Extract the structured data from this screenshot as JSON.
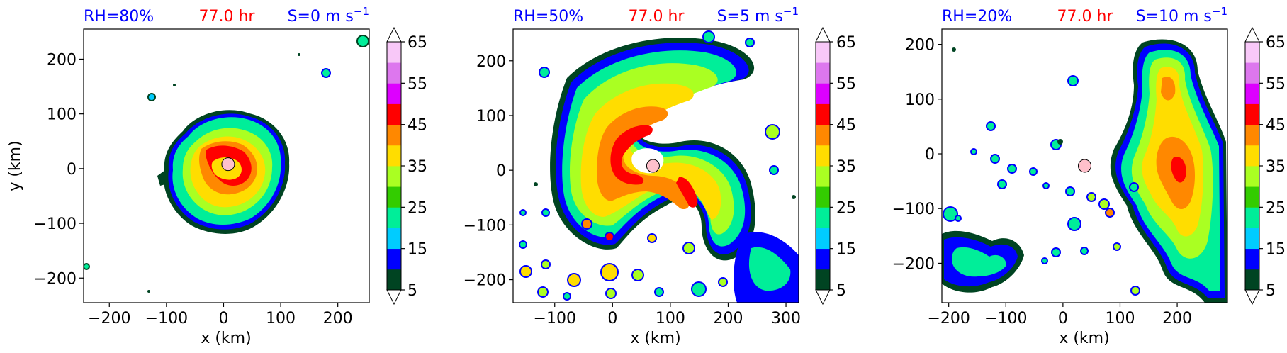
{
  "colors": {
    "title_left": "#0000ff",
    "title_center": "#ff0000",
    "title_right": "#0000ff",
    "eye_marker": "#ffc0cb",
    "colorbar_levels": [
      "#004422",
      "#0000ff",
      "#00ccff",
      "#00ee99",
      "#33cc00",
      "#aaff22",
      "#ffdd00",
      "#ff8800",
      "#ff0000",
      "#dd00ff",
      "#dd77ee",
      "#f8c8f8"
    ]
  },
  "chart_data": [
    {
      "type": "heatmap",
      "title_left": "RH=80%",
      "title_center": "77.0 hr",
      "title_right_base": "S=0 m s",
      "title_right_sup": "−1",
      "xlabel": "x (km)",
      "ylabel": "y (km)",
      "xlim": [
        -245,
        255
      ],
      "ylim": [
        -245,
        255
      ],
      "xticks": [
        -200,
        -100,
        0,
        100,
        200
      ],
      "xtick_labels": [
        "−200",
        "−100",
        "0",
        "100",
        "200"
      ],
      "yticks": [
        -200,
        -100,
        0,
        100,
        200
      ],
      "ytick_labels": [
        "−200",
        "−100",
        "0",
        "100",
        "200"
      ],
      "center": [
        8,
        8
      ],
      "colorbar": {
        "ticks": [
          "5",
          "15",
          "25",
          "35",
          "45",
          "55",
          "65"
        ],
        "extend": "both"
      }
    },
    {
      "type": "heatmap",
      "title_left": "RH=50%",
      "title_center": "77.0 hr",
      "title_right_base": "S=5 m s",
      "title_right_sup": "−1",
      "xlabel": "x (km)",
      "ylabel": "",
      "xlim": [
        -172,
        322
      ],
      "ylim": [
        -242,
        258
      ],
      "xticks": [
        -100,
        0,
        100,
        200,
        300
      ],
      "xtick_labels": [
        "−100",
        "0",
        "100",
        "200",
        "300"
      ],
      "yticks": [
        -200,
        -100,
        0,
        100,
        200
      ],
      "ytick_labels": [
        "−200",
        "−100",
        "0",
        "100",
        "200"
      ],
      "center": [
        70,
        8
      ],
      "colorbar": {
        "ticks": [
          "5",
          "15",
          "25",
          "35",
          "45",
          "55",
          "65"
        ],
        "extend": "both"
      }
    },
    {
      "type": "heatmap",
      "title_left": "RH=20%",
      "title_center": "77.0 hr",
      "title_right_base": "S=10 m s",
      "title_right_sup": "−1",
      "xlabel": "x (km)",
      "ylabel": "",
      "xlim": [
        -212,
        288
      ],
      "ylim": [
        -272,
        228
      ],
      "xticks": [
        -200,
        -100,
        0,
        100,
        200
      ],
      "xtick_labels": [
        "−200",
        "−100",
        "0",
        "100",
        "200"
      ],
      "yticks": [
        -200,
        -100,
        0,
        100,
        200
      ],
      "ytick_labels": [
        "−200",
        "−100",
        "0",
        "100",
        "200"
      ],
      "center": [
        38,
        -22
      ],
      "colorbar": {
        "ticks": [
          "5",
          "15",
          "25",
          "35",
          "45",
          "55",
          "65"
        ],
        "extend": "both"
      }
    }
  ]
}
